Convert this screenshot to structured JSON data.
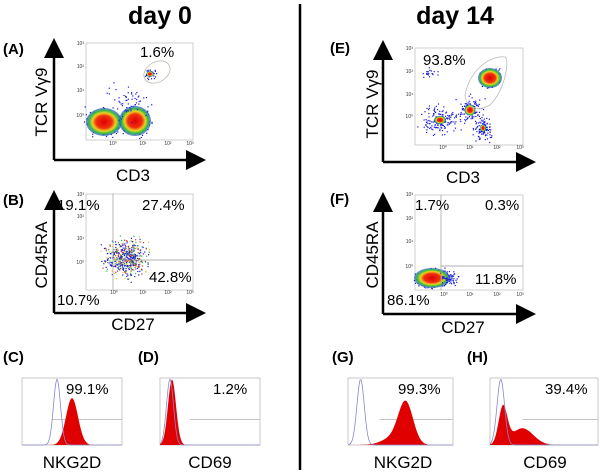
{
  "columns": [
    {
      "title": "day 0"
    },
    {
      "title": "day 14"
    }
  ],
  "colors": {
    "density_low": "#1a1adc",
    "density_mid": "#22c040",
    "density_high": "#f0e020",
    "density_peak": "#e81010",
    "histogram_fill": "#e00000",
    "control_line": "#8888cc",
    "gate": "#999999"
  },
  "chart_data": [
    {
      "panel": "(A)",
      "type": "scatter",
      "subtype": "flow-cytometry density plot",
      "xlabel": "CD3",
      "ylabel": "TCR Vγ9",
      "xscale": "log",
      "yscale": "log",
      "xticks": [
        "10⁰",
        "10¹",
        "10²",
        "10³"
      ],
      "yticks": [
        "10⁰",
        "10¹",
        "10²",
        "10³"
      ],
      "gates": [
        {
          "label": "1.6%",
          "value": 1.6
        }
      ]
    },
    {
      "panel": "(B)",
      "type": "scatter",
      "subtype": "flow-cytometry density plot, quadrant gates",
      "xlabel": "CD27",
      "ylabel": "CD45RA",
      "xscale": "log",
      "yscale": "log",
      "xticks": [
        "10⁰",
        "10¹",
        "10²",
        "10³"
      ],
      "yticks": [
        "10⁰",
        "10¹",
        "10²",
        "10³"
      ],
      "quadrants": {
        "upper_left": "19.1%",
        "upper_right": "27.4%",
        "lower_right": "42.8%",
        "lower_left": "10.7%"
      }
    },
    {
      "panel": "(C)",
      "type": "area",
      "subtype": "histogram",
      "xlabel": "NKG2D",
      "gates": [
        {
          "label": "99.1%",
          "value": 99.1
        }
      ]
    },
    {
      "panel": "(D)",
      "type": "area",
      "subtype": "histogram",
      "xlabel": "CD69",
      "gates": [
        {
          "label": "1.2%",
          "value": 1.2
        }
      ]
    },
    {
      "panel": "(E)",
      "type": "scatter",
      "subtype": "flow-cytometry density plot",
      "xlabel": "CD3",
      "ylabel": "TCR Vγ9",
      "xscale": "log",
      "yscale": "log",
      "xticks": [
        "10⁰",
        "10¹",
        "10²",
        "10³"
      ],
      "yticks": [
        "10⁰",
        "10¹",
        "10²",
        "10³"
      ],
      "gates": [
        {
          "label": "93.8%",
          "value": 93.8
        }
      ]
    },
    {
      "panel": "(F)",
      "type": "scatter",
      "subtype": "flow-cytometry density plot, quadrant gates",
      "xlabel": "CD27",
      "ylabel": "CD45RA",
      "xscale": "log",
      "yscale": "log",
      "xticks": [
        "10⁰",
        "10¹",
        "10²",
        "10³"
      ],
      "yticks": [
        "10⁰",
        "10¹",
        "10²",
        "10³"
      ],
      "quadrants": {
        "upper_left": "1.7%",
        "upper_right": "0.3%",
        "lower_right": "11.8%",
        "lower_left": "86.1%"
      }
    },
    {
      "panel": "(G)",
      "type": "area",
      "subtype": "histogram",
      "xlabel": "NKG2D",
      "gates": [
        {
          "label": "99.3%",
          "value": 99.3
        }
      ]
    },
    {
      "panel": "(H)",
      "type": "area",
      "subtype": "histogram",
      "xlabel": "CD69",
      "gates": [
        {
          "label": "39.4%",
          "value": 39.4
        }
      ]
    }
  ]
}
